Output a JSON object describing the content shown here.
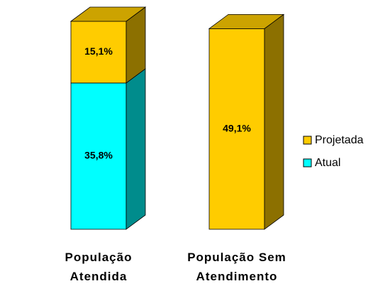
{
  "chart_data": {
    "type": "bar3d_stacked",
    "categories": [
      "População\nAtendida",
      "População Sem\nAtendimento"
    ],
    "series": [
      {
        "name": "Atual",
        "color": "#00FFFF",
        "values": [
          35.8,
          null
        ],
        "value_labels": [
          "35,8%",
          null
        ]
      },
      {
        "name": "Projetada",
        "color": "#FFCC00",
        "values": [
          15.1,
          49.1
        ],
        "value_labels": [
          "15,1%",
          "49,1%"
        ]
      }
    ],
    "legend": "right"
  }
}
